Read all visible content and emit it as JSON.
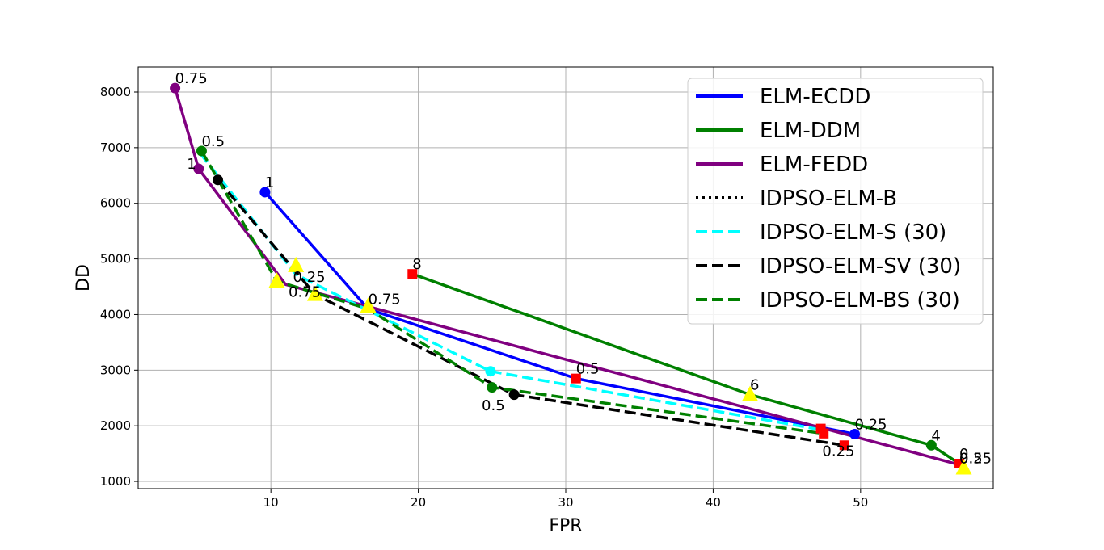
{
  "chart_data": {
    "type": "line",
    "xlabel": "FPR",
    "ylabel": "DD",
    "xlim": [
      1,
      59
    ],
    "ylim": [
      870,
      8450
    ],
    "xticks": [
      10,
      20,
      30,
      40,
      50
    ],
    "yticks": [
      1000,
      2000,
      3000,
      4000,
      5000,
      6000,
      7000,
      8000
    ],
    "xtick_labels": [
      "10",
      "20",
      "30",
      "40",
      "50"
    ],
    "ytick_labels": [
      "1000",
      "2000",
      "3000",
      "4000",
      "5000",
      "6000",
      "7000",
      "8000"
    ],
    "grid": true,
    "legend_position": "top-right",
    "series": [
      {
        "name": "ELM-ECDD",
        "color": "#0000ff",
        "linestyle": "solid",
        "x": [
          9.6,
          16.6,
          30.7,
          49.6
        ],
        "y": [
          6200,
          4100,
          2850,
          1850
        ]
      },
      {
        "name": "ELM-DDM",
        "color": "#008000",
        "linestyle": "solid",
        "x": [
          19.6,
          42.5,
          54.8,
          56.7
        ],
        "y": [
          4730,
          2560,
          1650,
          1320
        ]
      },
      {
        "name": "ELM-FEDD",
        "color": "#800080",
        "linestyle": "solid",
        "x": [
          3.5,
          5.1,
          11.0,
          56.7
        ],
        "y": [
          8070,
          6620,
          4540,
          1300
        ]
      },
      {
        "name": "IDPSO-ELM-B",
        "color": "#000000",
        "linestyle": "dotted",
        "x": [],
        "y": []
      },
      {
        "name": "IDPSO-ELM-S (30)",
        "color": "#00ffff",
        "linestyle": "dashed",
        "x": [
          5.2,
          11.7,
          24.9,
          47.3
        ],
        "y": [
          6900,
          4720,
          2980,
          1930
        ]
      },
      {
        "name": "IDPSO-ELM-SV (30)",
        "color": "#000000",
        "linestyle": "dashed",
        "x": [
          6.4,
          13.0,
          26.5,
          48.9
        ],
        "y": [
          6420,
          4360,
          2560,
          1650
        ]
      },
      {
        "name": "IDPSO-ELM-BS (30)",
        "color": "#008000",
        "linestyle": "dashed",
        "x": [
          5.3,
          10.4,
          16.6,
          25.0,
          47.5
        ],
        "y": [
          6940,
          4600,
          4100,
          2690,
          1860
        ]
      }
    ],
    "markers": [
      {
        "kind": "circle",
        "color": "#0000ff",
        "x": 9.6,
        "y": 6200
      },
      {
        "kind": "circle",
        "color": "#0000ff",
        "x": 49.6,
        "y": 1850
      },
      {
        "kind": "circle",
        "color": "#008000",
        "x": 5.3,
        "y": 6940
      },
      {
        "kind": "circle",
        "color": "#008000",
        "x": 25.0,
        "y": 2690
      },
      {
        "kind": "circle",
        "color": "#008000",
        "x": 54.8,
        "y": 1650
      },
      {
        "kind": "circle",
        "color": "#800080",
        "x": 3.5,
        "y": 8070
      },
      {
        "kind": "circle",
        "color": "#800080",
        "x": 5.1,
        "y": 6620
      },
      {
        "kind": "circle",
        "color": "#000000",
        "x": 6.4,
        "y": 6420
      },
      {
        "kind": "circle",
        "color": "#000000",
        "x": 26.5,
        "y": 2560
      },
      {
        "kind": "circle",
        "color": "#00ffff",
        "x": 24.9,
        "y": 2980
      },
      {
        "kind": "square",
        "color": "#ff0000",
        "x": 19.6,
        "y": 4730
      },
      {
        "kind": "square",
        "color": "#ff0000",
        "x": 30.7,
        "y": 2850
      },
      {
        "kind": "square",
        "color": "#ff0000",
        "x": 47.3,
        "y": 1950
      },
      {
        "kind": "square",
        "color": "#ff0000",
        "x": 47.5,
        "y": 1860
      },
      {
        "kind": "square",
        "color": "#ff0000",
        "x": 48.9,
        "y": 1650
      },
      {
        "kind": "square",
        "color": "#ff0000",
        "x": 56.7,
        "y": 1320
      },
      {
        "kind": "triangle",
        "color": "#ffff00",
        "x": 11.7,
        "y": 4880
      },
      {
        "kind": "triangle",
        "color": "#ffff00",
        "x": 10.4,
        "y": 4600
      },
      {
        "kind": "triangle",
        "color": "#ffff00",
        "x": 13.0,
        "y": 4360
      },
      {
        "kind": "triangle",
        "color": "#ffff00",
        "x": 16.6,
        "y": 4150
      },
      {
        "kind": "triangle",
        "color": "#ffff00",
        "x": 42.5,
        "y": 2560
      },
      {
        "kind": "triangle",
        "color": "#ffff00",
        "x": 57.0,
        "y": 1240
      }
    ],
    "annotations": [
      {
        "text": "0.75",
        "x": 3.5,
        "y": 8070
      },
      {
        "text": "0.5",
        "x": 5.3,
        "y": 6940
      },
      {
        "text": "1",
        "x": 4.3,
        "y": 6530
      },
      {
        "text": "1",
        "x": 9.6,
        "y": 6200
      },
      {
        "text": "0.25",
        "x": 11.5,
        "y": 4500
      },
      {
        "text": "0.75",
        "x": 11.2,
        "y": 4230
      },
      {
        "text": "8",
        "x": 19.6,
        "y": 4730
      },
      {
        "text": "0.75",
        "x": 16.6,
        "y": 4100
      },
      {
        "text": "0.5",
        "x": 30.7,
        "y": 2850
      },
      {
        "text": "6",
        "x": 42.5,
        "y": 2560
      },
      {
        "text": "0.5",
        "x": 24.3,
        "y": 2190
      },
      {
        "text": "0.25",
        "x": 49.6,
        "y": 1850
      },
      {
        "text": "4",
        "x": 54.8,
        "y": 1650
      },
      {
        "text": "0.25",
        "x": 47.4,
        "y": 1370
      },
      {
        "text": "0",
        "x": 56.7,
        "y": 1320
      },
      {
        "text": "0.5",
        "x": 56.7,
        "y": 1240
      },
      {
        "text": "0.25",
        "x": 56.7,
        "y": 1240
      }
    ]
  }
}
